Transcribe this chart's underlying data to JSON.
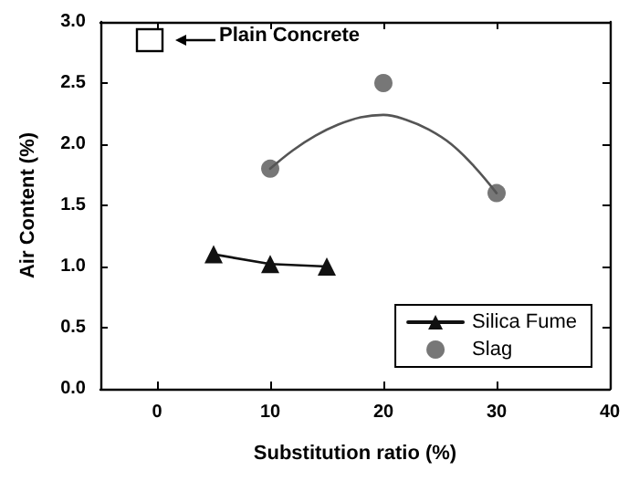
{
  "chart_data": {
    "type": "line",
    "xlabel": "Substitution ratio (%)",
    "ylabel": "Air Content (%)",
    "xlim": [
      -5,
      40
    ],
    "xticks": [
      0,
      10,
      20,
      30,
      40
    ],
    "ylim": [
      0,
      3
    ],
    "yticks": [
      {
        "value": 0,
        "label": "0.0"
      },
      {
        "value": 0.5,
        "label": "0.5"
      },
      {
        "value": 1,
        "label": "1.0"
      },
      {
        "value": 1.5,
        "label": "1.5"
      },
      {
        "value": 2,
        "label": "2.0"
      },
      {
        "value": 2.5,
        "label": "2.5"
      },
      {
        "value": 3,
        "label": "3.0"
      }
    ],
    "grid": false,
    "legend": "bottom right",
    "annotations": [
      "Plain Concrete"
    ],
    "series": [
      {
        "name": "Silica Fume",
        "marker": "triangle",
        "color": "#111111",
        "x": [
          5,
          10,
          15
        ],
        "values": [
          1.1,
          1.02,
          1.0
        ]
      },
      {
        "name": "Slag",
        "type": "scatter",
        "marker": "circle",
        "color": "#555555",
        "x": [
          10,
          20,
          30
        ],
        "values": [
          1.8,
          2.5,
          1.6
        ]
      },
      {
        "type": "line",
        "marker": "none",
        "color": "#555555",
        "x": [
          10,
          12,
          14,
          16,
          18,
          20,
          22,
          24,
          26,
          28,
          30
        ],
        "values": [
          1.8,
          1.95,
          2.07,
          2.16,
          2.22,
          2.24,
          2.2,
          2.12,
          2.0,
          1.82,
          1.6
        ]
      }
    ]
  }
}
